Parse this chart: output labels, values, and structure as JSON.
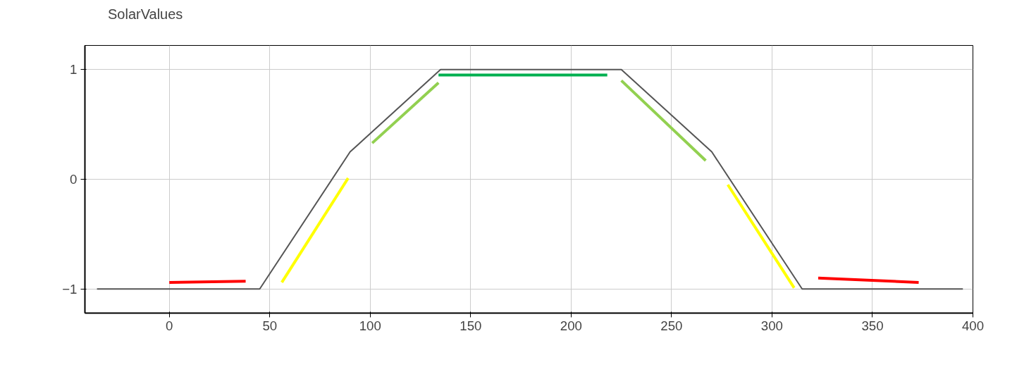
{
  "chart_data": {
    "type": "line",
    "xlim": [
      -42,
      400
    ],
    "ylim": [
      -1.22,
      1.22
    ],
    "xticks": [
      0,
      50,
      100,
      150,
      200,
      250,
      300,
      350,
      400
    ],
    "yticks": [
      -1,
      0,
      1
    ],
    "grid": true,
    "legend": "top left",
    "marker": "none",
    "line_style": "solid",
    "series": [
      {
        "name": "SolarValues",
        "color": "#555555",
        "x": [
          -36,
          45,
          90,
          135,
          225,
          270,
          315,
          395
        ],
        "values": [
          -1,
          -1,
          0.25,
          1,
          1,
          0.25,
          -1,
          -1
        ]
      },
      {
        "color": "#ff0000",
        "x": [
          0,
          38
        ],
        "values": [
          -0.94,
          -0.93
        ]
      },
      {
        "color": "#ffff00",
        "x": [
          56,
          89
        ],
        "values": [
          -0.94,
          0.01
        ]
      },
      {
        "color": "#92d050",
        "x": [
          101,
          134
        ],
        "values": [
          0.33,
          0.88
        ]
      },
      {
        "color": "#00b050",
        "x": [
          134,
          218
        ],
        "values": [
          0.95,
          0.95
        ]
      },
      {
        "color": "#92d050",
        "x": [
          225,
          267
        ],
        "values": [
          0.9,
          0.17
        ]
      },
      {
        "color": "#ffff00",
        "x": [
          278,
          311
        ],
        "values": [
          -0.05,
          -0.99
        ]
      },
      {
        "color": "#ff0000",
        "x": [
          323,
          373
        ],
        "values": [
          -0.9,
          -0.94
        ]
      }
    ]
  }
}
